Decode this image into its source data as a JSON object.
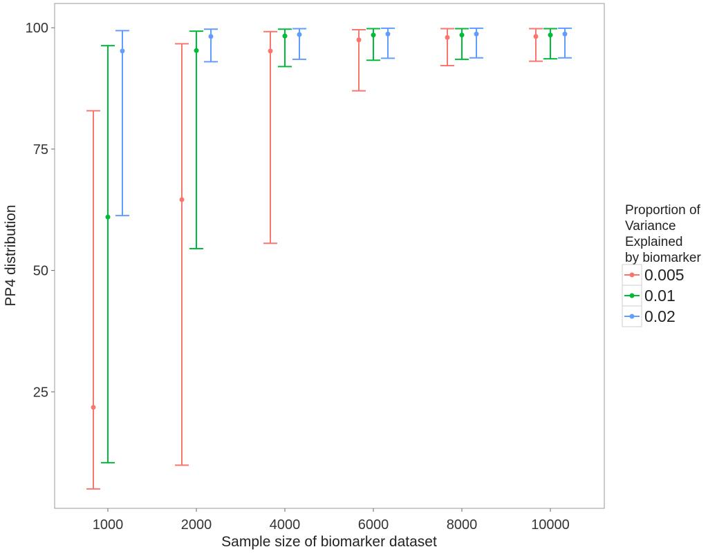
{
  "chart_data": {
    "type": "errorbar",
    "title": "",
    "xlabel": "Sample size of biomarker dataset",
    "ylabel": "PP4 distribution",
    "categories": [
      "1000",
      "2000",
      "4000",
      "6000",
      "8000",
      "10000"
    ],
    "ylim": [
      1,
      105
    ],
    "yticks": [
      25,
      50,
      75,
      100
    ],
    "grid": false,
    "legend": {
      "title_lines": [
        "Proportion of",
        "Variance",
        "Explained",
        "by biomarker"
      ],
      "placement": "right"
    },
    "series": [
      {
        "name": "0.005",
        "color": "#F8766D",
        "points": [
          {
            "category": "1000",
            "mid": 21.8,
            "low": 5.0,
            "high": 82.9
          },
          {
            "category": "2000",
            "mid": 64.6,
            "low": 9.9,
            "high": 96.7
          },
          {
            "category": "4000",
            "mid": 95.2,
            "low": 55.6,
            "high": 99.2
          },
          {
            "category": "6000",
            "mid": 97.5,
            "low": 87.0,
            "high": 99.6
          },
          {
            "category": "8000",
            "mid": 98.0,
            "low": 92.2,
            "high": 99.8
          },
          {
            "category": "10000",
            "mid": 98.2,
            "low": 93.1,
            "high": 99.8
          }
        ]
      },
      {
        "name": "0.01",
        "color": "#00BA38",
        "points": [
          {
            "category": "1000",
            "mid": 61.0,
            "low": 10.4,
            "high": 96.3
          },
          {
            "category": "2000",
            "mid": 95.3,
            "low": 54.5,
            "high": 99.3
          },
          {
            "category": "4000",
            "mid": 98.3,
            "low": 92.0,
            "high": 99.7
          },
          {
            "category": "6000",
            "mid": 98.5,
            "low": 93.3,
            "high": 99.8
          },
          {
            "category": "8000",
            "mid": 98.5,
            "low": 93.5,
            "high": 99.8
          },
          {
            "category": "10000",
            "mid": 98.5,
            "low": 93.6,
            "high": 99.8
          }
        ]
      },
      {
        "name": "0.02",
        "color": "#619CFF",
        "points": [
          {
            "category": "1000",
            "mid": 95.2,
            "low": 61.3,
            "high": 99.4
          },
          {
            "category": "2000",
            "mid": 98.2,
            "low": 93.0,
            "high": 99.7
          },
          {
            "category": "4000",
            "mid": 98.6,
            "low": 93.5,
            "high": 99.8
          },
          {
            "category": "6000",
            "mid": 98.7,
            "low": 93.7,
            "high": 99.9
          },
          {
            "category": "8000",
            "mid": 98.7,
            "low": 93.8,
            "high": 99.9
          },
          {
            "category": "10000",
            "mid": 98.7,
            "low": 93.8,
            "high": 99.9
          }
        ]
      }
    ]
  }
}
